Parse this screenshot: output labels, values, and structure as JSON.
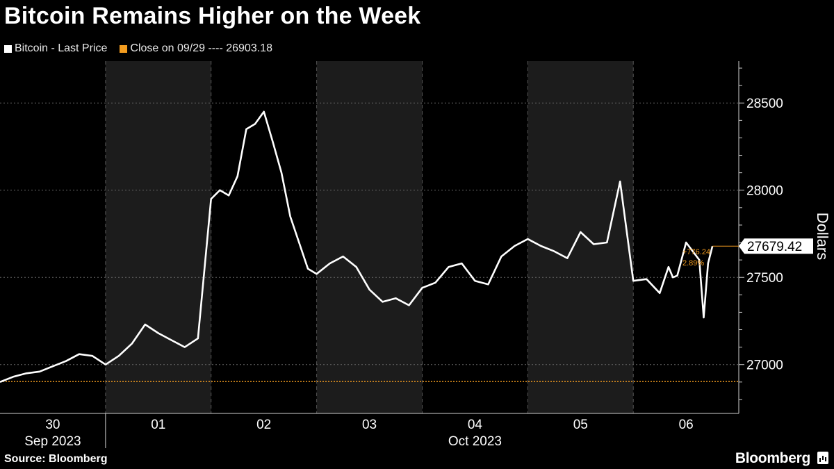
{
  "title": "Bitcoin Remains Higher on the Week",
  "legend": [
    {
      "label": "Bitcoin - Last Price",
      "color": "#ffffff"
    },
    {
      "label": "Close on 09/29 ---- 26903.18",
      "color": "#f39c1f"
    }
  ],
  "source": "Source: Bloomberg",
  "brand": "Bloomberg",
  "chart_data": {
    "type": "line",
    "ylabel": "Dollars",
    "ylim": [
      26720,
      28740
    ],
    "yticks": [
      27000,
      27500,
      28000,
      28500
    ],
    "ytick_labels": [
      "27000",
      "27500",
      "28000",
      "28500"
    ],
    "xlim": [
      "2023-09-30T00:00",
      "2023-10-06T23:59"
    ],
    "day_ticks": [
      {
        "label": "30",
        "date": "2023-09-30"
      },
      {
        "label": "01",
        "date": "2023-10-01"
      },
      {
        "label": "02",
        "date": "2023-10-02"
      },
      {
        "label": "03",
        "date": "2023-10-03"
      },
      {
        "label": "04",
        "date": "2023-10-04"
      },
      {
        "label": "05",
        "date": "2023-10-05"
      },
      {
        "label": "06",
        "date": "2023-10-06"
      }
    ],
    "month_labels": [
      {
        "label": "Sep 2023",
        "date": "2023-09-30"
      },
      {
        "label": "Oct 2023",
        "date": "2023-10-04"
      }
    ],
    "shaded_days": [
      "2023-10-01",
      "2023-10-03",
      "2023-10-05"
    ],
    "reference_line": {
      "value": 26903.18,
      "color": "#f39c1f"
    },
    "last_price": {
      "value": "27679.42",
      "change": "+776.24",
      "change_pct": "2.89%"
    },
    "series": [
      {
        "x": [
          "2023-09-30T00:00",
          "2023-09-30T03:00",
          "2023-09-30T06:00",
          "2023-09-30T09:00",
          "2023-09-30T12:00",
          "2023-09-30T15:00",
          "2023-09-30T18:00",
          "2023-09-30T21:00",
          "2023-10-01T00:00",
          "2023-10-01T03:00",
          "2023-10-01T06:00",
          "2023-10-01T09:00",
          "2023-10-01T12:00",
          "2023-10-01T15:00",
          "2023-10-01T18:00",
          "2023-10-01T21:00",
          "2023-10-02T00:00",
          "2023-10-02T02:00",
          "2023-10-02T04:00",
          "2023-10-02T06:00",
          "2023-10-02T08:00",
          "2023-10-02T10:00",
          "2023-10-02T12:00",
          "2023-10-02T14:00",
          "2023-10-02T16:00",
          "2023-10-02T18:00",
          "2023-10-02T20:00",
          "2023-10-02T22:00",
          "2023-10-03T00:00",
          "2023-10-03T03:00",
          "2023-10-03T06:00",
          "2023-10-03T09:00",
          "2023-10-03T12:00",
          "2023-10-03T15:00",
          "2023-10-03T18:00",
          "2023-10-03T21:00",
          "2023-10-04T00:00",
          "2023-10-04T03:00",
          "2023-10-04T06:00",
          "2023-10-04T09:00",
          "2023-10-04T12:00",
          "2023-10-04T15:00",
          "2023-10-04T18:00",
          "2023-10-04T21:00",
          "2023-10-05T00:00",
          "2023-10-05T03:00",
          "2023-10-05T06:00",
          "2023-10-05T09:00",
          "2023-10-05T12:00",
          "2023-10-05T15:00",
          "2023-10-05T18:00",
          "2023-10-05T21:00",
          "2023-10-06T00:00",
          "2023-10-06T03:00",
          "2023-10-06T06:00",
          "2023-10-06T08:00",
          "2023-10-06T09:00",
          "2023-10-06T10:00",
          "2023-10-06T12:00",
          "2023-10-06T15:00",
          "2023-10-06T16:00",
          "2023-10-06T17:00",
          "2023-10-06T18:00"
        ],
        "y": [
          26900,
          26930,
          26950,
          26960,
          26990,
          27020,
          27060,
          27050,
          27000,
          27050,
          27120,
          27230,
          27180,
          27140,
          27100,
          27150,
          27950,
          28000,
          27970,
          28080,
          28350,
          28380,
          28450,
          28280,
          28100,
          27850,
          27700,
          27550,
          27520,
          27580,
          27620,
          27560,
          27430,
          27360,
          27380,
          27340,
          27440,
          27470,
          27560,
          27580,
          27480,
          27460,
          27620,
          27680,
          27720,
          27680,
          27650,
          27610,
          27760,
          27690,
          27700,
          28050,
          27480,
          27490,
          27410,
          27560,
          27500,
          27510,
          27700,
          27600,
          27270,
          27580,
          27679
        ]
      }
    ]
  }
}
